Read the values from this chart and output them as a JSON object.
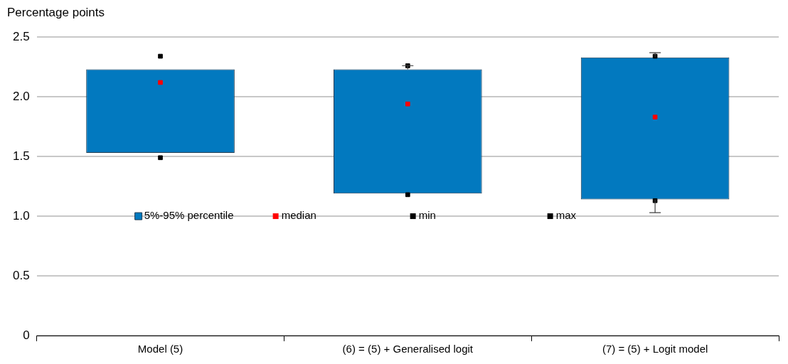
{
  "chart_data": {
    "type": "bar",
    "ylabel": "Percentage points",
    "categories": [
      "Model (5)",
      "(6) = (5) + Generalised logit",
      "(7) = (5) + Logit model"
    ],
    "series": [
      {
        "name": "5%-95% percentile",
        "type": "bar",
        "color": "#0279bf",
        "base": [
          1.53,
          1.19,
          1.14
        ],
        "values": [
          0.7,
          1.04,
          1.19
        ],
        "errors": [
          null,
          [
            2.23,
            2.26
          ],
          [
            1.03,
            2.37
          ]
        ]
      },
      {
        "name": "median",
        "type": "scatter",
        "color": "#ff0000",
        "values": [
          2.12,
          1.94,
          1.83
        ]
      },
      {
        "name": "min",
        "type": "scatter",
        "color": "#000000",
        "values": [
          1.49,
          1.18,
          1.13
        ]
      },
      {
        "name": "max",
        "type": "scatter",
        "color": "#000000",
        "values": [
          2.34,
          2.26,
          2.34
        ]
      }
    ],
    "ylim": [
      0,
      2.5
    ],
    "yticks": [
      0,
      0.5,
      {
        "value": 1,
        "label": "1.0"
      },
      1.5,
      {
        "value": 2,
        "label": "2.0"
      },
      2.5
    ],
    "grid": "y",
    "legend": "center",
    "marker": "square"
  }
}
